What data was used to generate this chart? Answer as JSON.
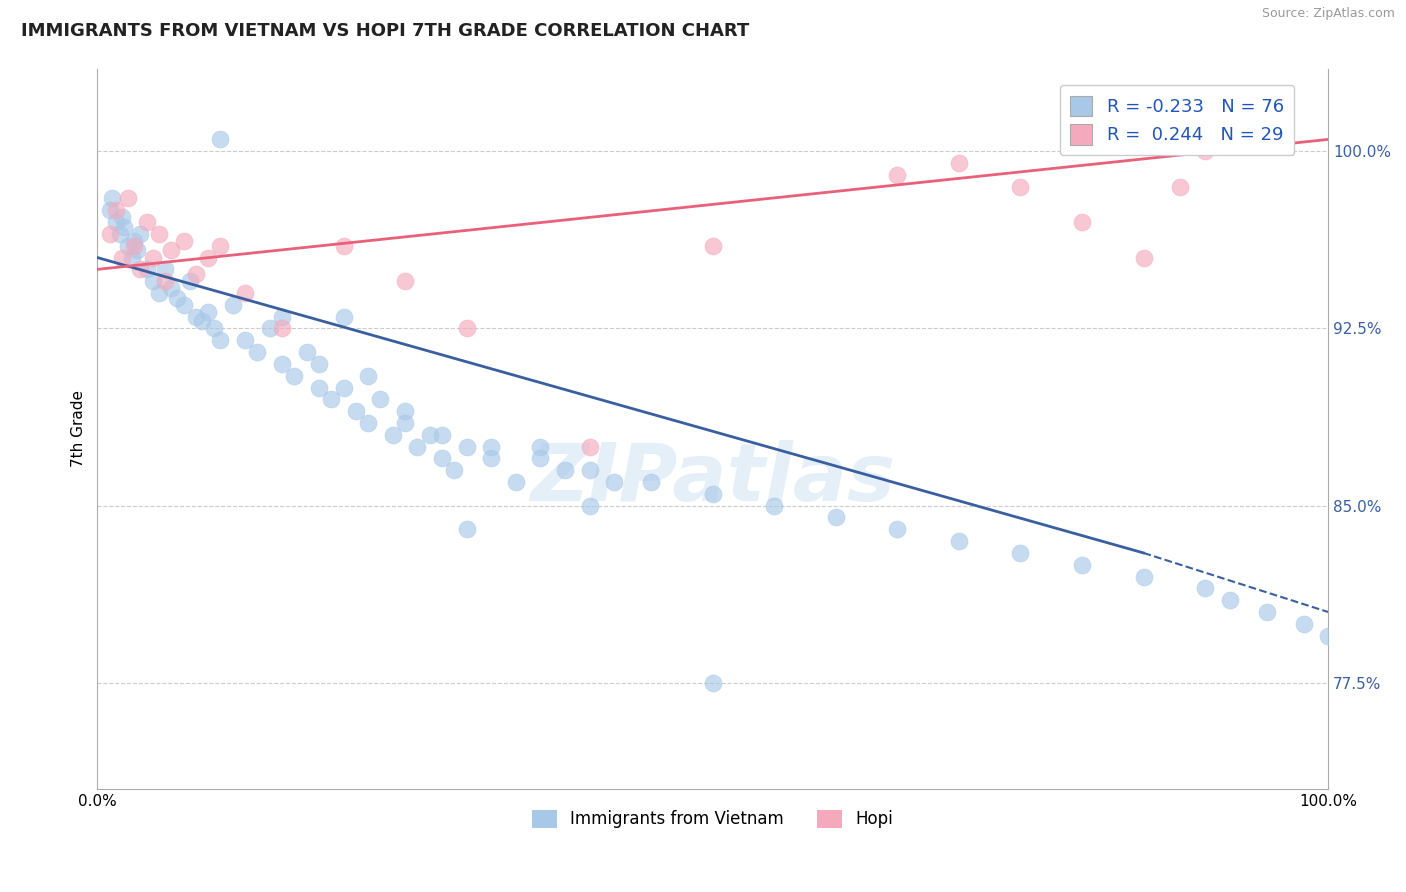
{
  "title": "IMMIGRANTS FROM VIETNAM VS HOPI 7TH GRADE CORRELATION CHART",
  "source": "Source: ZipAtlas.com",
  "ylabel": "7th Grade",
  "xlim": [
    0.0,
    100.0
  ],
  "ylim": [
    73.0,
    103.5
  ],
  "yticks": [
    77.5,
    85.0,
    92.5,
    100.0
  ],
  "ytick_labels": [
    "77.5%",
    "85.0%",
    "92.5%",
    "100.0%"
  ],
  "xtick_labels": [
    "0.0%",
    "100.0%"
  ],
  "blue_color": "#A8C8E8",
  "pink_color": "#F4AABC",
  "line_blue": "#3A5FA0",
  "line_pink": "#E8607A",
  "blue_label": "Immigrants from Vietnam",
  "pink_label": "Hopi",
  "watermark": "ZIPatlas",
  "blue_r": "-0.233",
  "blue_n": "76",
  "pink_r": "0.244",
  "pink_n": "29",
  "blue_x": [
    1.0,
    1.2,
    1.5,
    1.8,
    2.0,
    2.2,
    2.5,
    2.8,
    3.0,
    3.2,
    3.5,
    4.0,
    4.5,
    5.0,
    5.5,
    6.0,
    6.5,
    7.0,
    7.5,
    8.0,
    8.5,
    9.0,
    9.5,
    10.0,
    11.0,
    12.0,
    13.0,
    14.0,
    15.0,
    16.0,
    17.0,
    18.0,
    19.0,
    20.0,
    21.0,
    22.0,
    23.0,
    24.0,
    25.0,
    26.0,
    27.0,
    28.0,
    29.0,
    30.0,
    32.0,
    34.0,
    36.0,
    38.0,
    40.0,
    42.0,
    15.0,
    18.0,
    22.0,
    25.0,
    28.0,
    32.0,
    36.0,
    40.0,
    45.0,
    50.0,
    55.0,
    60.0,
    65.0,
    70.0,
    75.0,
    80.0,
    85.0,
    90.0,
    92.0,
    95.0,
    98.0,
    100.0,
    50.0,
    10.0,
    20.0,
    30.0
  ],
  "blue_y": [
    97.5,
    98.0,
    97.0,
    96.5,
    97.2,
    96.8,
    96.0,
    95.5,
    96.2,
    95.8,
    96.5,
    95.0,
    94.5,
    94.0,
    95.0,
    94.2,
    93.8,
    93.5,
    94.5,
    93.0,
    92.8,
    93.2,
    92.5,
    92.0,
    93.5,
    92.0,
    91.5,
    92.5,
    91.0,
    90.5,
    91.5,
    90.0,
    89.5,
    90.0,
    89.0,
    88.5,
    89.5,
    88.0,
    88.5,
    87.5,
    88.0,
    87.0,
    86.5,
    87.5,
    87.0,
    86.0,
    87.5,
    86.5,
    85.0,
    86.0,
    93.0,
    91.0,
    90.5,
    89.0,
    88.0,
    87.5,
    87.0,
    86.5,
    86.0,
    85.5,
    85.0,
    84.5,
    84.0,
    83.5,
    83.0,
    82.5,
    82.0,
    81.5,
    81.0,
    80.5,
    80.0,
    79.5,
    77.5,
    100.5,
    93.0,
    84.0
  ],
  "pink_x": [
    1.0,
    1.5,
    2.0,
    2.5,
    3.0,
    3.5,
    4.0,
    4.5,
    5.0,
    5.5,
    6.0,
    7.0,
    8.0,
    9.0,
    10.0,
    12.0,
    15.0,
    20.0,
    25.0,
    30.0,
    40.0,
    50.0,
    65.0,
    70.0,
    75.0,
    80.0,
    85.0,
    88.0,
    90.0
  ],
  "pink_y": [
    96.5,
    97.5,
    95.5,
    98.0,
    96.0,
    95.0,
    97.0,
    95.5,
    96.5,
    94.5,
    95.8,
    96.2,
    94.8,
    95.5,
    96.0,
    94.0,
    92.5,
    96.0,
    94.5,
    92.5,
    87.5,
    96.0,
    99.0,
    99.5,
    98.5,
    97.0,
    95.5,
    98.5,
    100.0
  ],
  "blue_line_x0": 0.0,
  "blue_line_y0": 95.5,
  "blue_line_x1": 85.0,
  "blue_line_y1": 83.0,
  "blue_dash_x1": 100.0,
  "blue_dash_y1": 80.5,
  "pink_line_x0": 0.0,
  "pink_line_y0": 95.0,
  "pink_line_x1": 100.0,
  "pink_line_y1": 100.5
}
